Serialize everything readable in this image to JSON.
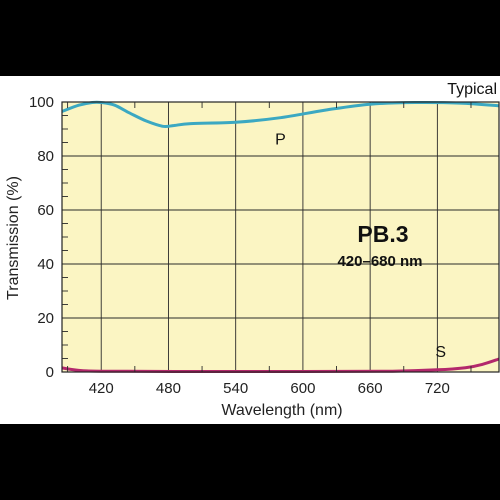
{
  "chart_data": {
    "type": "line",
    "title": "PB.3",
    "subtitle": "420–680 nm",
    "corner_label": "Typical",
    "xlabel": "Wavelength (nm)",
    "ylabel": "Transmission (%)",
    "xlim": [
      385,
      775
    ],
    "ylim": [
      0,
      100
    ],
    "x_ticks": [
      420,
      480,
      540,
      600,
      660,
      720
    ],
    "y_ticks": [
      0,
      20,
      40,
      60,
      80,
      100
    ],
    "grid": true,
    "plot_background": "#fbf5c3",
    "series": [
      {
        "name": "P",
        "color": "#3ba8c2",
        "x": [
          385,
          400,
          412,
          420,
          432,
          445,
          460,
          475,
          485,
          500,
          540,
          580,
          620,
          660,
          700,
          740,
          775
        ],
        "y": [
          96.5,
          98.8,
          99.8,
          99.8,
          98.8,
          96,
          93,
          91,
          91.3,
          92,
          92.5,
          94.2,
          97,
          99.2,
          99.8,
          99.6,
          98.6
        ]
      },
      {
        "name": "S",
        "color": "#b3286c",
        "x": [
          385,
          400,
          420,
          500,
          600,
          680,
          720,
          745,
          760,
          775
        ],
        "y": [
          1.5,
          0.6,
          0.3,
          0.2,
          0.2,
          0.3,
          0.8,
          1.6,
          2.8,
          4.8
        ]
      }
    ]
  }
}
